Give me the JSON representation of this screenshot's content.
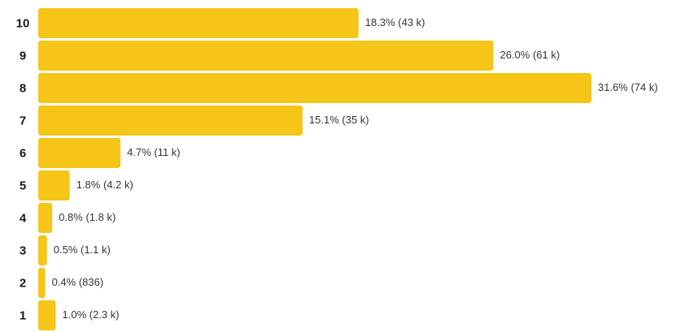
{
  "chart_data": {
    "type": "bar",
    "color": "#f5c518",
    "categories": [
      "10",
      "9",
      "8",
      "7",
      "6",
      "5",
      "4",
      "3",
      "2",
      "1"
    ],
    "values": [
      18.3,
      26.0,
      31.6,
      15.1,
      4.7,
      1.8,
      0.8,
      0.5,
      0.4,
      1.0
    ],
    "value_labels": [
      "18.3% (43 k)",
      "26.0% (61 k)",
      "31.6% (74 k)",
      "15.1% (35 k)",
      "4.7% (11 k)",
      "1.8% (4.2 k)",
      "0.8% (1.8 k)",
      "0.5% (1.1 k)",
      "0.4% (836)",
      "1.0% (2.3 k)"
    ]
  }
}
